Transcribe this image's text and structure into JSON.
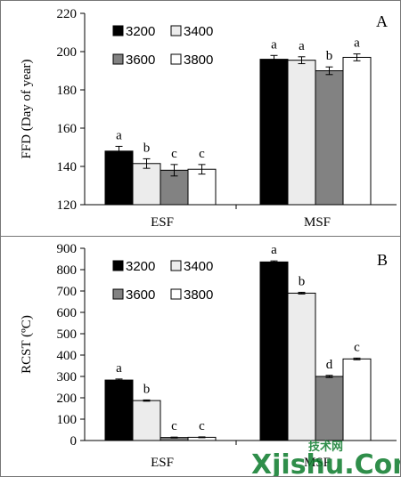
{
  "chart_data": [
    {
      "type": "bar",
      "panel_label": "A",
      "ylabel": "FFD (Day of year)",
      "xlabel": "",
      "ylim": [
        120,
        220
      ],
      "yticks": [
        120,
        140,
        160,
        180,
        200,
        220
      ],
      "categories": [
        "ESF",
        "MSF"
      ],
      "series": [
        {
          "name": "3200",
          "color": "#000000",
          "values": [
            148,
            196
          ],
          "errors": [
            2.5,
            2.0
          ],
          "letters": [
            "a",
            "a"
          ]
        },
        {
          "name": "3400",
          "color": "#ececec",
          "values": [
            141.5,
            195.5
          ],
          "errors": [
            2.5,
            1.8
          ],
          "letters": [
            "b",
            "a"
          ]
        },
        {
          "name": "3600",
          "color": "#828282",
          "values": [
            138,
            190
          ],
          "errors": [
            3.0,
            2.0
          ],
          "letters": [
            "c",
            "b"
          ]
        },
        {
          "name": "3800",
          "color": "#ffffff",
          "values": [
            138.5,
            197
          ],
          "errors": [
            2.5,
            1.8
          ],
          "letters": [
            "c",
            "a"
          ]
        }
      ],
      "legend_placement": "top-left",
      "grid": false
    },
    {
      "type": "bar",
      "panel_label": "B",
      "ylabel": "RCST (ºC)",
      "xlabel": "",
      "ylim": [
        0,
        900
      ],
      "yticks": [
        0,
        100,
        200,
        300,
        400,
        500,
        600,
        700,
        800,
        900
      ],
      "categories": [
        "ESF",
        "MSF"
      ],
      "series": [
        {
          "name": "3200",
          "color": "#000000",
          "values": [
            283,
            836
          ],
          "errors": [
            5,
            5
          ],
          "letters": [
            "a",
            "a"
          ]
        },
        {
          "name": "3400",
          "color": "#ececec",
          "values": [
            187,
            690
          ],
          "errors": [
            3,
            4
          ],
          "letters": [
            "b",
            "b"
          ]
        },
        {
          "name": "3600",
          "color": "#828282",
          "values": [
            14,
            300
          ],
          "errors": [
            2,
            5
          ],
          "letters": [
            "c",
            "d"
          ]
        },
        {
          "name": "3800",
          "color": "#ffffff",
          "values": [
            15,
            382
          ],
          "errors": [
            2,
            4
          ],
          "letters": [
            "c",
            "c"
          ]
        }
      ],
      "legend_placement": "top-left",
      "grid": false
    }
  ],
  "watermark": {
    "text_top": "技术网",
    "text_main": "Xjishu.Com"
  }
}
